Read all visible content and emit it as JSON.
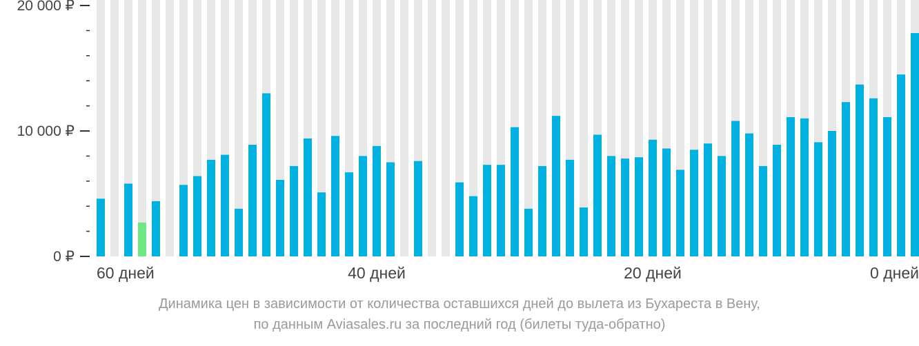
{
  "chart_data": {
    "type": "bar",
    "y_tick_labels": [
      "20 000 ₽",
      "10 000 ₽",
      "0 ₽"
    ],
    "y_tick_values": [
      20000,
      10000,
      0
    ],
    "ylim": [
      0,
      20000
    ],
    "x_tick_labels": [
      "60 дней",
      "40 дней",
      "20 дней",
      "0 дней"
    ],
    "x_tick_days": [
      59,
      39,
      19,
      0
    ],
    "x_range_days": [
      59,
      0
    ],
    "days": [
      59,
      58,
      57,
      56,
      55,
      54,
      53,
      52,
      51,
      50,
      49,
      48,
      47,
      46,
      45,
      44,
      43,
      42,
      41,
      40,
      39,
      38,
      37,
      36,
      35,
      34,
      33,
      32,
      31,
      30,
      29,
      28,
      27,
      26,
      25,
      24,
      23,
      22,
      21,
      20,
      19,
      18,
      17,
      16,
      15,
      14,
      13,
      12,
      11,
      10,
      9,
      8,
      7,
      6,
      5,
      4,
      3,
      2,
      1,
      0
    ],
    "values": [
      4600,
      null,
      5800,
      2700,
      4400,
      null,
      5700,
      6400,
      7700,
      8100,
      3800,
      8900,
      13000,
      6100,
      7200,
      9400,
      5100,
      9600,
      6700,
      8000,
      8800,
      7500,
      null,
      7600,
      null,
      null,
      5900,
      4800,
      7300,
      7300,
      10300,
      3800,
      7200,
      11200,
      7700,
      3900,
      9700,
      8000,
      7800,
      7900,
      9300,
      8600,
      6900,
      8500,
      9000,
      8000,
      10800,
      9800,
      7200,
      8900,
      11100,
      11000,
      9100,
      10000,
      12300,
      13700,
      12600,
      11100,
      14500,
      17800
    ],
    "min_day": 56,
    "colors": {
      "bar": "#00b0de",
      "min_bar": "#6ee887",
      "column_bg": "#e7e7e7",
      "axis": "#333333"
    },
    "caption_line1": "Динамика цен в зависимости от количества оставшихся дней до вылета из Бухареста в Вену,",
    "caption_line2": "по данным Aviasales.ru за последний год (билеты туда-обратно)"
  }
}
